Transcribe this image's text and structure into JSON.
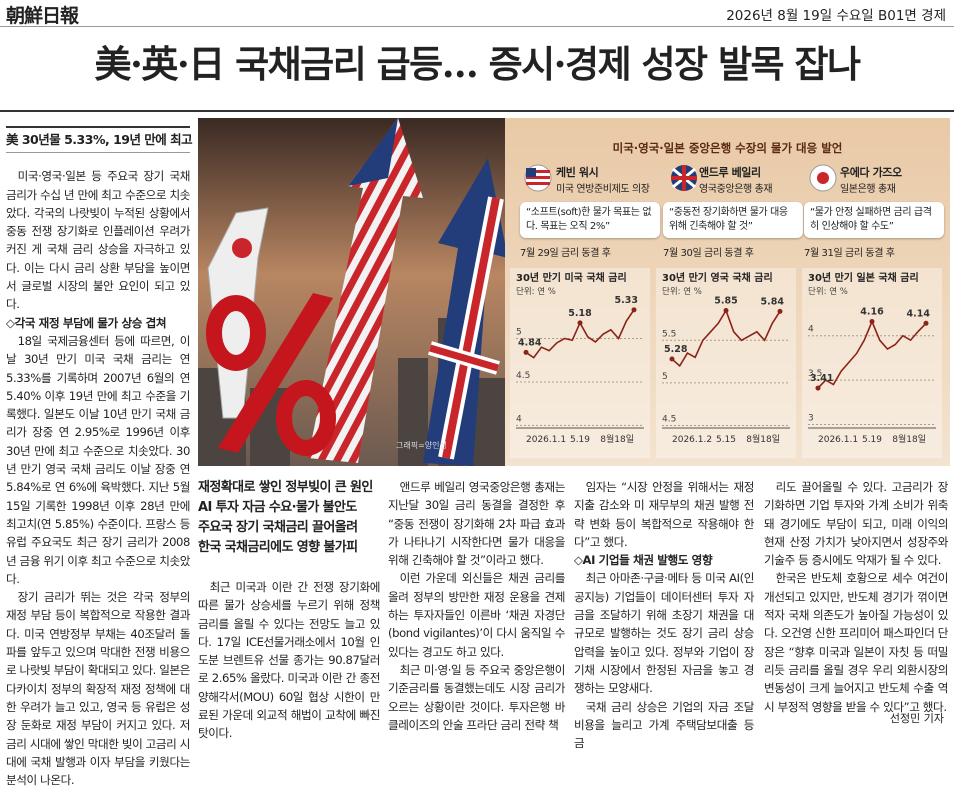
{
  "header": {
    "logo": "朝鮮日報",
    "dateline": "2026년 8월 19일 수요일 B01면 경제"
  },
  "headline": "美·英·日 국채금리 급등… 증시·경제 성장 발목 잡나",
  "left_column": {
    "subhead": "美 30년물 5.33%, 19년 만에 최고",
    "sections": [
      {
        "paragraphs": [
          "미국·영국·일본 등 주요국 장기 국채 금리가 수십 년 만에 최고 수준으로 치솟았다. 각국의 나랏빚이 누적된 상황에서 중동 전쟁 장기화로 인플레이션 우려가 커진 게 국채 금리 상승을 자극하고 있다. 이는 다시 금리 상환 부담을 높이면서 글로벌 시장의 불안 요인이 되고 있다."
        ]
      },
      {
        "heading": "◇각국 재정 부담에 물가 상승 겹쳐",
        "paragraphs": [
          "18일 국제금융센터 등에 따르면, 이날 30년 만기 미국 국채 금리는 연 5.33%를 기록하며 2007년 6월의 연 5.40% 이후 19년 만에 최고 수준을 기록했다. 일본도 이날 10년 만기 국채 금리가 장중 연 2.95%로 1996년 이후 30년 만에 최고 수준으로 치솟았다. 30년 만기 영국 국채 금리도 이날 장중 연 5.84%로 연 6%에 육박했다. 지난 5월 15일 기록한 1998년 이후 28년 만에 최고치(연 5.85%) 수준이다. 프랑스 등 유럽 주요국도 최근 장기 금리가 2008년 금융 위기 이후 최고 수준으로 치솟았다.",
          "장기 금리가 뛰는 것은 각국 정부의 재정 부담 등이 복합적으로 작용한 결과다. 미국 연방정부 부채는 40조달러 돌파를 앞두고 있으며 막대한 전쟁 비용으로 나랏빚 부담이 확대되고 있다. 일본은 다카이치 정부의 확장적 재정 정책에 대한 우려가 늘고 있고, 영국 등 유럽은 성장 둔화로 재정 부담이 커지고 있다. 저금리 시대에 쌓인 막대한 빚이 고금리 시대에 국채 발행과 이자 부담을 키웠다는 분석이 나온다."
        ]
      }
    ]
  },
  "graphic": {
    "credit": "그래픽=양인성",
    "title": "미국·영국·일본 중앙은행 수장의 물가 대응 발언",
    "officials": [
      {
        "name": "케빈 워시",
        "role": "미국 연방준비제도 의장",
        "quote": "“소프트(soft)한 물가 목표는 없다. 목표는 오직 2%”",
        "date": "7월 29일 금리 동결 후"
      },
      {
        "name": "앤드루 베일리",
        "role": "영국중앙은행 총재",
        "quote": "“중동전 장기화하면 물가 대응 위해 긴축해야 할 것”",
        "date": "7월 30일 금리 동결 후"
      },
      {
        "name": "우에다 가즈오",
        "role": "일본은행 총재",
        "quote": "“물가 안정 실패하면 금리 급격히 인상해야 할 수도”",
        "date": "7월 31일 금리 동결 후"
      }
    ]
  },
  "chart_data": [
    {
      "type": "line",
      "title": "30년 만기 미국 국채 금리",
      "unit": "단위: 연 %",
      "color": "#8b2418",
      "categories": [
        "2026.1.1",
        null,
        null,
        null,
        null,
        null,
        null,
        "5.19",
        null,
        null,
        null,
        null,
        null,
        null,
        "8월18일"
      ],
      "values": [
        4.84,
        4.78,
        4.9,
        4.86,
        4.95,
        5.0,
        4.98,
        5.18,
        5.02,
        4.96,
        5.05,
        5.1,
        5.0,
        5.2,
        5.33
      ],
      "value_labels": [
        "4.84",
        null,
        null,
        null,
        null,
        null,
        null,
        "5.18",
        null,
        null,
        null,
        null,
        null,
        null,
        "5.33"
      ],
      "ylim": [
        3.97,
        5.42
      ],
      "yticks": [
        5,
        4.5,
        4
      ],
      "grid": true
    },
    {
      "type": "line",
      "title": "30년 만기 영국 국채 금리",
      "unit": "단위: 연 %",
      "color": "#8b2418",
      "categories": [
        "2026.1.2",
        null,
        null,
        null,
        null,
        null,
        null,
        "5.15",
        null,
        null,
        null,
        null,
        null,
        null,
        "8월18일"
      ],
      "values": [
        5.28,
        5.2,
        5.35,
        5.3,
        5.5,
        5.6,
        5.7,
        5.85,
        5.6,
        5.5,
        5.55,
        5.6,
        5.5,
        5.7,
        5.84
      ],
      "value_labels": [
        "5.28",
        null,
        null,
        null,
        null,
        null,
        null,
        "5.85",
        null,
        null,
        null,
        null,
        null,
        null,
        "5.84"
      ],
      "ylim": [
        4.47,
        5.95
      ],
      "yticks": [
        5.5,
        5,
        4.5
      ],
      "grid": true
    },
    {
      "type": "line",
      "title": "30년 만기 일본 국채 금리",
      "unit": "단위: 연 %",
      "color": "#8b2418",
      "categories": [
        "2026.1.1",
        null,
        null,
        null,
        null,
        null,
        null,
        "5.19",
        null,
        null,
        null,
        null,
        null,
        null,
        "8월18일"
      ],
      "values": [
        3.41,
        3.5,
        3.45,
        3.6,
        3.7,
        3.8,
        3.95,
        4.16,
        3.95,
        3.85,
        3.9,
        4.0,
        3.95,
        4.05,
        4.14
      ],
      "value_labels": [
        "3.41",
        null,
        null,
        null,
        null,
        null,
        null,
        "4.16",
        null,
        null,
        null,
        null,
        null,
        null,
        "4.14"
      ],
      "ylim": [
        2.96,
        4.38
      ],
      "yticks": [
        4,
        3.5,
        3
      ],
      "grid": true
    }
  ],
  "deck": [
    "재정확대로 쌓인 정부빚이 큰 원인",
    "AI 투자 자금 수요·물가 불안도",
    "주요국 장기 국채금리 끌어올려",
    "한국 국채금리에도 영향 불가피"
  ],
  "columns": [
    [
      {
        "text": "최근 미국과 이란 간 전쟁 장기화에 따른 물가 상승세를 누르기 위해 정책 금리를 올릴 수 있다는 전망도 늘고 있다. 17일 ICE선물거래소에서 10월 인도분 브렌트유 선물 종가는 90.87달러로 2.65% 올랐다. 미국과 이란 간 종전 양해각서(MOU) 60일 협상 시한이 만료된 가운데 외교적 해법이 교착에 빠진 탓이다."
      }
    ],
    [
      {
        "text": "앤드루 베일리 영국중앙은행 총재는 지난달 30일 금리 동결을 결정한 후 “중동 전쟁이 장기화해 2차 파급 효과가 나타나기 시작한다면 물가 대응을 위해 긴축해야 할 것”이라고 했다."
      },
      {
        "text": "이런 가운데 외신들은 채권 금리를 올려 정부의 방만한 재정 운용을 견제하는 투자자들인 이른바 ‘채권 자경단(bond vigilantes)’이 다시 움직일 수 있다는 경고도 하고 있다."
      },
      {
        "text": "최근 미·영·일 등 주요국 중앙은행이 기준금리를 동결했는데도 시장 금리가 오르는 상황이란 것이다. 투자은행 바클레이즈의 안술 프라단 금리 전략 책"
      }
    ],
    [
      {
        "text": "임자는 “시장 안정을 위해서는 재정 지출 감소와 미 재무부의 채권 발행 전략 변화 등이 복합적으로 작용해야 한다”고 했다."
      },
      {
        "heading": "◇AI 기업들 채권 발행도 영향"
      },
      {
        "text": "최근 아마존·구글·메타 등 미국 AI(인공지능) 기업들이 데이터센터 투자 자금을 조달하기 위해 초장기 채권을 대규모로 발행하는 것도 장기 금리 상승 압력을 높이고 있다. 정부와 기업이 장기채 시장에서 한정된 자금을 놓고 경쟁하는 모양새다."
      },
      {
        "text": "국채 금리 상승은 기업의 자금 조달 비용을 늘리고 가계 주택담보대출 등 금"
      }
    ],
    [
      {
        "text": "리도 끌어올릴 수 있다. 고금리가 장기화하면 기업 투자와 가계 소비가 위축돼 경기에도 부담이 되고, 미래 이익의 현재 산정 가치가 낮아지면서 성장주와 기술주 등 증시에도 악재가 될 수 있다."
      },
      {
        "text": "한국은 반도체 호황으로 세수 여건이 개선되고 있지만, 반도체 경기가 꺾이면 적자 국채 의존도가 높아질 가능성이 있다. 오건영 신한 프리미어 패스파인더 단장은 “향후 미국과 일본이 자칫 등 떠밀리듯 금리를 올릴 경우 우리 외환시장의 변동성이 크게 늘어지고 반도체 수출 역시 부정적 영향을 받을 수 있다”고 했다."
      }
    ]
  ],
  "byline": "선정민 기자"
}
